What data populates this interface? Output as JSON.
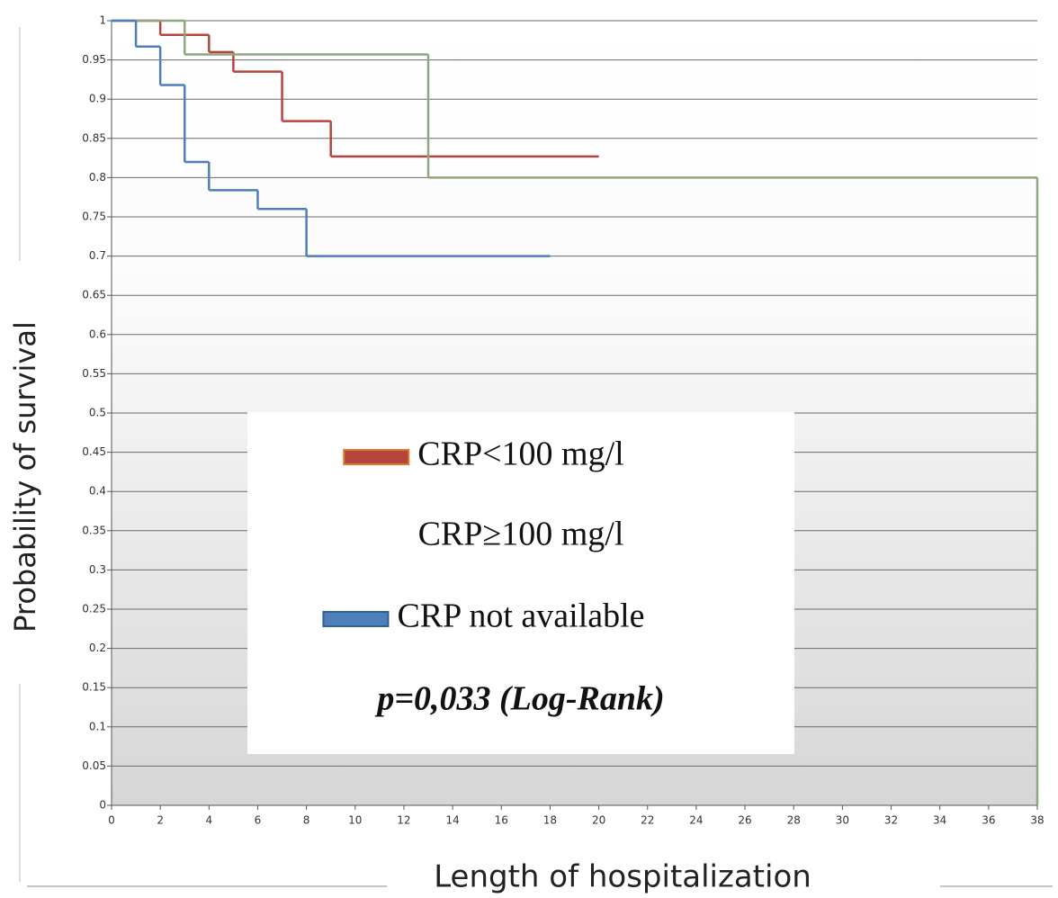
{
  "chart_data": {
    "type": "line",
    "drawstyle": "steps-post",
    "xlabel": "Length of hospitalization",
    "ylabel": "Probability of survival",
    "annotation": "p=0,033 (Log-Rank)",
    "series": [
      {
        "name": "CRP<100 mg/l",
        "color": "#b5443f",
        "x": [
          0,
          2,
          4,
          5,
          7,
          9,
          20
        ],
        "values": [
          1,
          0.982,
          0.96,
          0.935,
          0.872,
          0.827,
          0.827
        ]
      },
      {
        "name": "CRP≥100 mg/l",
        "color": "#8fa67f",
        "x": [
          0,
          3,
          13,
          38
        ],
        "values": [
          1,
          0.957,
          0.8,
          0
        ]
      },
      {
        "name": "CRP not available",
        "color": "#4f7fb8",
        "x": [
          0,
          1,
          2,
          3,
          4,
          6,
          8,
          18
        ],
        "values": [
          1,
          0.967,
          0.918,
          0.82,
          0.784,
          0.76,
          0.7,
          0.7
        ]
      }
    ],
    "xlim": [
      0,
      38
    ],
    "xticks": [
      0,
      2,
      4,
      6,
      8,
      10,
      12,
      14,
      16,
      18,
      20,
      22,
      24,
      26,
      28,
      30,
      32,
      34,
      36,
      38
    ],
    "ylim": [
      0,
      1
    ],
    "yticks": [
      0,
      0.05,
      0.1,
      0.15,
      0.2,
      0.25,
      0.3,
      0.35,
      0.4,
      0.45,
      0.5,
      0.55,
      0.6,
      0.65,
      0.7,
      0.75,
      0.8,
      0.85,
      0.9,
      0.95,
      1
    ],
    "grid": true
  }
}
